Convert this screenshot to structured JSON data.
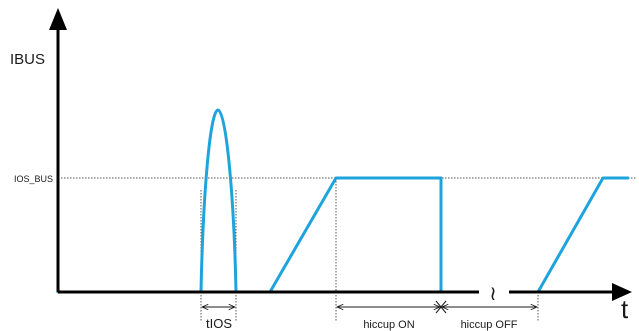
{
  "diagram": {
    "y_axis_label": "IBUS",
    "x_axis_label": "t",
    "threshold_label": "IOS_BUS",
    "blanking_time_label": "tIOS",
    "hiccup_on_label": "hiccup ON",
    "hiccup_off_label": "hiccup OFF",
    "break_symbol": "≀",
    "trace_color": "#1ea4dc",
    "axis_color": "#000000"
  }
}
